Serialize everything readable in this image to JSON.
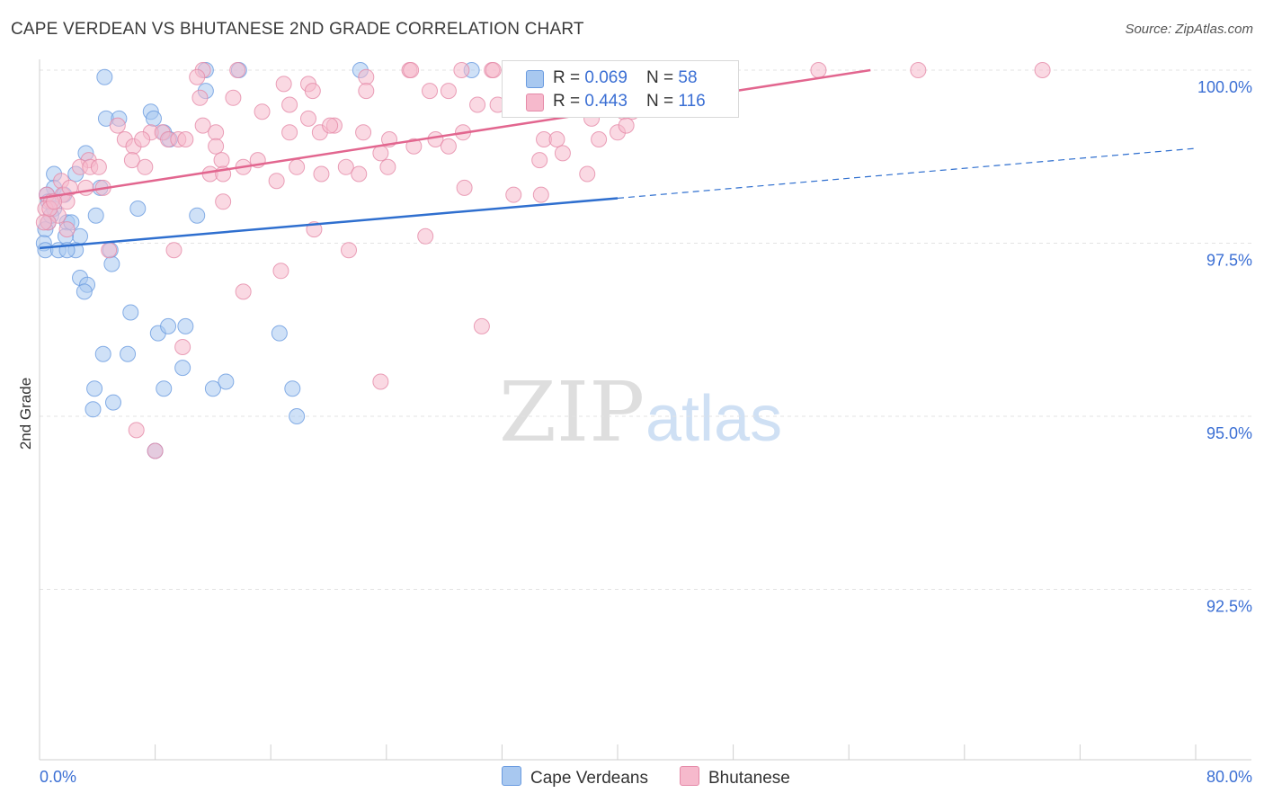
{
  "title": "CAPE VERDEAN VS BHUTANESE 2ND GRADE CORRELATION CHART",
  "source": "Source: ZipAtlas.com",
  "watermark": {
    "zip": "ZIP",
    "atlas": "atlas"
  },
  "colors": {
    "blue_fill": "#a8c8f0",
    "blue_stroke": "#6a9be0",
    "blue_line": "#2f6fcf",
    "pink_fill": "#f6b9cc",
    "pink_stroke": "#e58aa8",
    "pink_line": "#e2668f",
    "axis_text": "#3b6fd4",
    "grid": "#e3e3e3"
  },
  "legend": {
    "rows": [
      {
        "r_label": "R = ",
        "r_value": "0.069",
        "n_label": "N = ",
        "n_value": "58",
        "series": "blue"
      },
      {
        "r_label": "R = ",
        "r_value": "0.443",
        "n_label": "N = ",
        "n_value": "116",
        "series": "pink"
      }
    ]
  },
  "bottom_legend": [
    "Cape Verdeans",
    "Bhutanese"
  ],
  "chart_data": {
    "type": "scatter",
    "xlabel": "",
    "ylabel": "2nd Grade",
    "xlim": [
      0,
      80
    ],
    "ylim": [
      90.1,
      100.3
    ],
    "x_tick_labels": [
      "0.0%",
      "80.0%"
    ],
    "y_ticks": [
      92.5,
      95.0,
      97.5,
      100.0
    ],
    "y_tick_labels": [
      "92.5%",
      "95.0%",
      "97.5%",
      "100.0%"
    ],
    "grid": true,
    "series": [
      {
        "name": "Cape Verdeans",
        "color": "blue",
        "points": [
          [
            4.5,
            99.9
          ],
          [
            11.5,
            100.0
          ],
          [
            13.8,
            100.0
          ],
          [
            22.2,
            100.0
          ],
          [
            29.9,
            100.0
          ],
          [
            11.5,
            99.7
          ],
          [
            4.6,
            99.3
          ],
          [
            5.5,
            99.3
          ],
          [
            7.7,
            99.4
          ],
          [
            7.9,
            99.3
          ],
          [
            8.6,
            99.1
          ],
          [
            9.0,
            99.0
          ],
          [
            3.2,
            98.8
          ],
          [
            1.0,
            98.5
          ],
          [
            2.5,
            98.5
          ],
          [
            1.0,
            98.3
          ],
          [
            0.5,
            98.2
          ],
          [
            1.7,
            98.2
          ],
          [
            4.2,
            98.3
          ],
          [
            6.8,
            98.0
          ],
          [
            3.9,
            97.9
          ],
          [
            10.9,
            97.9
          ],
          [
            0.6,
            97.8
          ],
          [
            1.9,
            97.8
          ],
          [
            2.2,
            97.8
          ],
          [
            0.4,
            97.7
          ],
          [
            2.8,
            97.6
          ],
          [
            1.8,
            97.6
          ],
          [
            0.3,
            97.5
          ],
          [
            0.4,
            97.4
          ],
          [
            1.3,
            97.4
          ],
          [
            2.5,
            97.4
          ],
          [
            1.9,
            97.4
          ],
          [
            4.9,
            97.4
          ],
          [
            5.0,
            97.2
          ],
          [
            2.8,
            97.0
          ],
          [
            3.3,
            96.9
          ],
          [
            3.1,
            96.8
          ],
          [
            6.3,
            96.5
          ],
          [
            8.2,
            96.2
          ],
          [
            8.9,
            96.3
          ],
          [
            10.1,
            96.3
          ],
          [
            16.6,
            96.2
          ],
          [
            4.4,
            95.9
          ],
          [
            6.1,
            95.9
          ],
          [
            9.9,
            95.7
          ],
          [
            3.8,
            95.4
          ],
          [
            8.6,
            95.4
          ],
          [
            12.0,
            95.4
          ],
          [
            12.9,
            95.5
          ],
          [
            17.5,
            95.4
          ],
          [
            3.7,
            95.1
          ],
          [
            5.1,
            95.2
          ],
          [
            17.8,
            95.0
          ],
          [
            8.0,
            94.5
          ],
          [
            0.6,
            98.1
          ],
          [
            1.0,
            98.0
          ],
          [
            0.8,
            97.9
          ]
        ]
      },
      {
        "name": "Bhutanese",
        "color": "pink",
        "points": [
          [
            11.3,
            100.0
          ],
          [
            13.7,
            100.0
          ],
          [
            25.6,
            100.0
          ],
          [
            25.7,
            100.0
          ],
          [
            29.2,
            100.0
          ],
          [
            31.3,
            100.0
          ],
          [
            31.4,
            100.0
          ],
          [
            38.3,
            100.0
          ],
          [
            43.4,
            100.0
          ],
          [
            45.1,
            100.0
          ],
          [
            46.2,
            100.0
          ],
          [
            47.5,
            100.0
          ],
          [
            53.9,
            100.0
          ],
          [
            60.8,
            100.0
          ],
          [
            69.4,
            100.0
          ],
          [
            10.9,
            99.9
          ],
          [
            16.9,
            99.8
          ],
          [
            18.6,
            99.8
          ],
          [
            22.6,
            99.9
          ],
          [
            27.0,
            99.7
          ],
          [
            18.9,
            99.7
          ],
          [
            22.6,
            99.7
          ],
          [
            28.3,
            99.7
          ],
          [
            33.6,
            99.7
          ],
          [
            11.1,
            99.6
          ],
          [
            13.4,
            99.6
          ],
          [
            17.3,
            99.5
          ],
          [
            30.3,
            99.5
          ],
          [
            31.7,
            99.5
          ],
          [
            36.9,
            99.6
          ],
          [
            39.1,
            99.5
          ],
          [
            41.0,
            99.4
          ],
          [
            15.4,
            99.4
          ],
          [
            18.6,
            99.3
          ],
          [
            11.3,
            99.2
          ],
          [
            20.4,
            99.2
          ],
          [
            38.2,
            99.3
          ],
          [
            40.4,
            99.4
          ],
          [
            5.4,
            99.2
          ],
          [
            7.7,
            99.1
          ],
          [
            12.2,
            99.1
          ],
          [
            17.3,
            99.1
          ],
          [
            19.4,
            99.1
          ],
          [
            20.1,
            99.2
          ],
          [
            22.4,
            99.1
          ],
          [
            27.4,
            99.0
          ],
          [
            29.3,
            99.1
          ],
          [
            38.7,
            99.0
          ],
          [
            40.0,
            99.1
          ],
          [
            5.9,
            99.0
          ],
          [
            6.5,
            98.9
          ],
          [
            7.1,
            99.0
          ],
          [
            8.5,
            99.1
          ],
          [
            8.9,
            99.0
          ],
          [
            9.6,
            99.0
          ],
          [
            10.1,
            99.0
          ],
          [
            12.2,
            98.9
          ],
          [
            24.2,
            99.0
          ],
          [
            25.9,
            98.9
          ],
          [
            34.9,
            99.0
          ],
          [
            35.8,
            99.0
          ],
          [
            3.4,
            98.7
          ],
          [
            6.4,
            98.7
          ],
          [
            12.6,
            98.7
          ],
          [
            14.1,
            98.6
          ],
          [
            15.1,
            98.7
          ],
          [
            17.8,
            98.6
          ],
          [
            23.6,
            98.8
          ],
          [
            34.6,
            98.7
          ],
          [
            36.2,
            98.8
          ],
          [
            2.8,
            98.6
          ],
          [
            3.5,
            98.6
          ],
          [
            4.1,
            98.6
          ],
          [
            7.3,
            98.6
          ],
          [
            11.8,
            98.5
          ],
          [
            12.7,
            98.5
          ],
          [
            16.4,
            98.4
          ],
          [
            19.5,
            98.5
          ],
          [
            21.2,
            98.6
          ],
          [
            22.1,
            98.5
          ],
          [
            24.1,
            98.6
          ],
          [
            1.5,
            98.4
          ],
          [
            3.2,
            98.3
          ],
          [
            4.4,
            98.3
          ],
          [
            0.5,
            98.2
          ],
          [
            1.6,
            98.2
          ],
          [
            29.4,
            98.3
          ],
          [
            32.8,
            98.2
          ],
          [
            34.7,
            98.2
          ],
          [
            37.9,
            98.5
          ],
          [
            0.8,
            98.1
          ],
          [
            1.9,
            98.1
          ],
          [
            12.7,
            98.1
          ],
          [
            0.4,
            98.0
          ],
          [
            1.3,
            97.9
          ],
          [
            0.6,
            97.8
          ],
          [
            1.9,
            97.7
          ],
          [
            19.0,
            97.7
          ],
          [
            26.7,
            97.6
          ],
          [
            21.4,
            97.4
          ],
          [
            4.8,
            97.4
          ],
          [
            9.3,
            97.4
          ],
          [
            16.7,
            97.1
          ],
          [
            14.1,
            96.8
          ],
          [
            30.6,
            96.3
          ],
          [
            9.9,
            96.0
          ],
          [
            23.6,
            95.5
          ],
          [
            6.7,
            94.8
          ],
          [
            8.0,
            94.5
          ],
          [
            0.7,
            98.0
          ],
          [
            1.0,
            98.1
          ],
          [
            0.3,
            97.8
          ],
          [
            2.1,
            98.3
          ],
          [
            42.2,
            99.5
          ],
          [
            40.6,
            99.2
          ],
          [
            28.3,
            98.9
          ]
        ]
      }
    ],
    "trend_lines": [
      {
        "series": "Cape Verdeans",
        "x": [
          0,
          40
        ],
        "y": [
          97.43,
          98.15
        ],
        "dashed_extension": {
          "x": [
            40,
            80
          ],
          "y": [
            98.15,
            98.87
          ]
        }
      },
      {
        "series": "Bhutanese",
        "x": [
          0,
          57.5
        ],
        "y": [
          98.15,
          100.0
        ]
      }
    ]
  }
}
